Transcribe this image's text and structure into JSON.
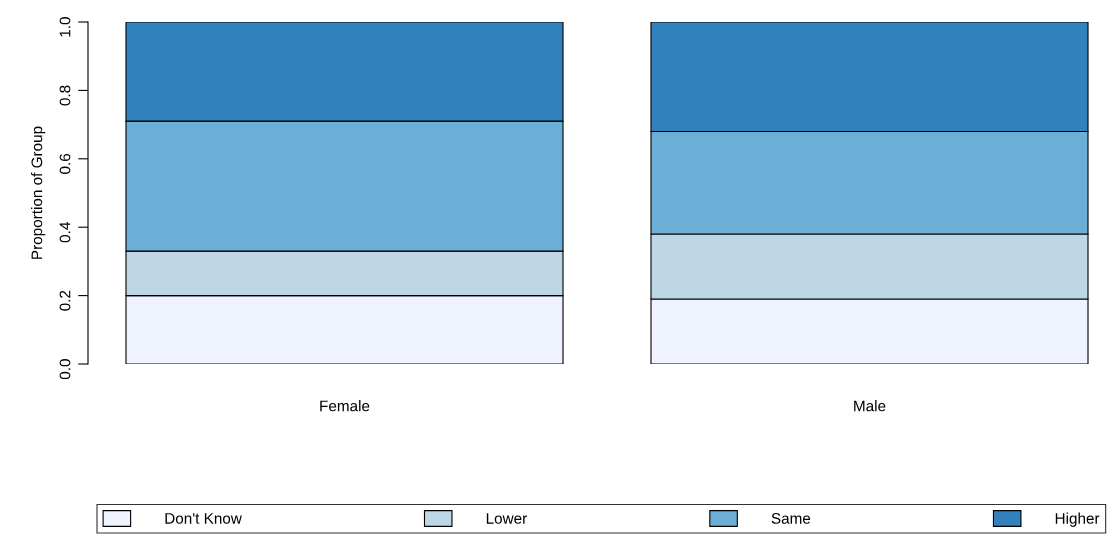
{
  "chart_data": {
    "type": "bar",
    "stacked": true,
    "ylabel": "Proportion of Group",
    "categories": [
      "Female",
      "Male"
    ],
    "series": [
      {
        "name": "Don't Know",
        "color": "#eff3ff",
        "values": [
          0.2,
          0.19
        ]
      },
      {
        "name": "Lower",
        "color": "#bdd7e7",
        "values": [
          0.13,
          0.19
        ]
      },
      {
        "name": "Same",
        "color": "#6baed6",
        "values": [
          0.38,
          0.3
        ]
      },
      {
        "name": "Higher",
        "color": "#3182bd",
        "values": [
          0.29,
          0.32
        ]
      }
    ],
    "ylim": [
      0,
      1
    ],
    "yticks": [
      {
        "value": 0,
        "label": "0.0"
      },
      0.2,
      0.4,
      0.6,
      0.8,
      {
        "value": 1,
        "label": "1.0"
      }
    ],
    "grid": false,
    "legend": "bottom"
  }
}
